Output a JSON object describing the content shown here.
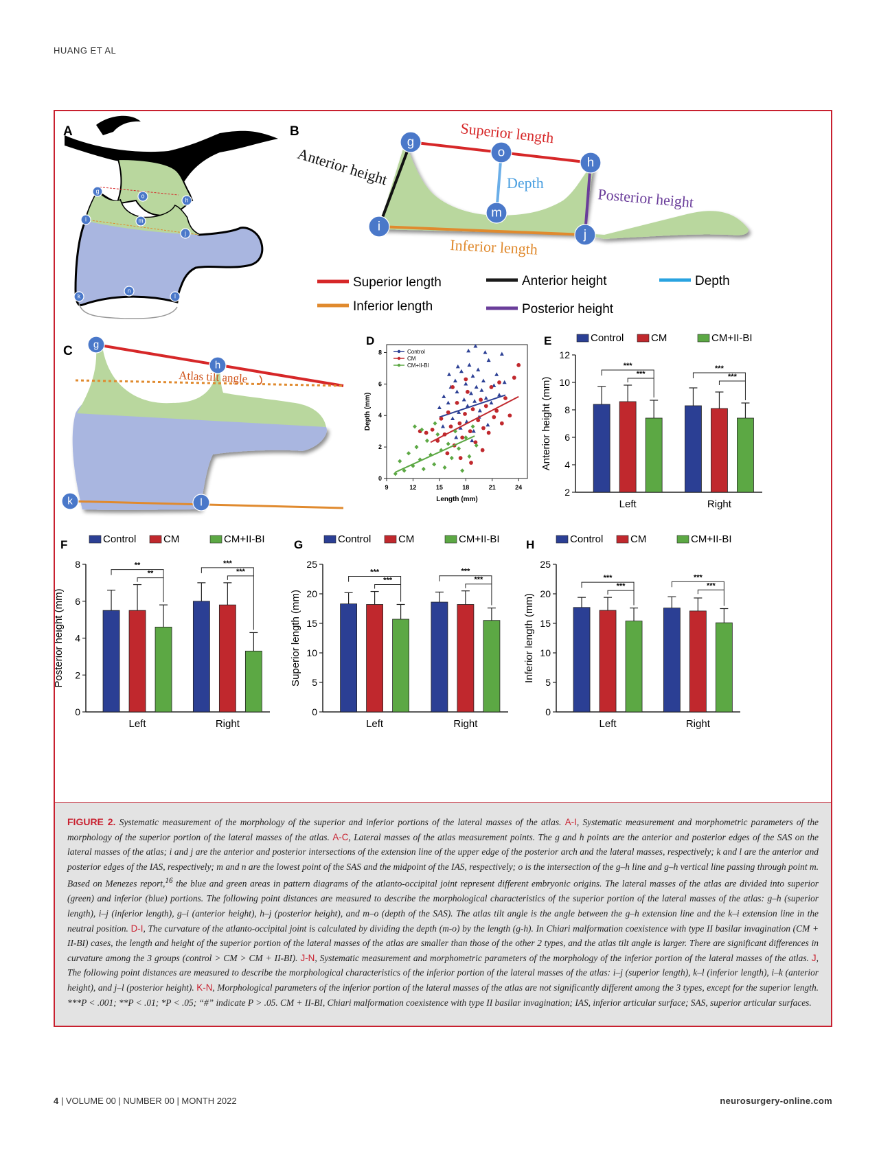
{
  "header": {
    "running_head": "HUANG ET AL"
  },
  "panels": {
    "A": {
      "letter": "A",
      "points": [
        "g",
        "o",
        "h",
        "i",
        "m",
        "j",
        "k",
        "n",
        "l"
      ]
    },
    "B": {
      "letter": "B",
      "points": [
        "g",
        "o",
        "h",
        "m",
        "i",
        "j"
      ],
      "labels": {
        "superior_length": "Superior length",
        "anterior_height": "Anterior height",
        "depth": "Depth",
        "posterior_height": "Posterior height",
        "inferior_length": "Inferior length"
      },
      "legend": [
        {
          "label": "Superior length",
          "color": "#d62728"
        },
        {
          "label": "Anterior height",
          "color": "#1a1a1a"
        },
        {
          "label": "Depth",
          "color": "#29a3e0"
        },
        {
          "label": "Inferior length",
          "color": "#e08a2e"
        },
        {
          "label": "Posterior height",
          "color": "#6a3d9a"
        }
      ]
    },
    "C": {
      "letter": "C",
      "points": [
        "g",
        "h",
        "k",
        "l"
      ],
      "angle_label": "Atlas tilt angle"
    }
  },
  "colors": {
    "control": "#2b3f94",
    "cm": "#c0282d",
    "cm_iibi": "#5ca844",
    "accent": "#c8202f",
    "green_region": "#b9d79e",
    "blue_region": "#a9b6e0",
    "point_fill": "#4a78c9"
  },
  "chart_data": [
    {
      "panel": "D",
      "type": "scatter",
      "xlabel": "Length (mm)",
      "ylabel": "Depth (mm)",
      "xlim": [
        9,
        25
      ],
      "ylim": [
        0,
        8.5
      ],
      "xticks": [
        "9",
        "12",
        "15",
        "18",
        "21",
        "24"
      ],
      "yticks": [
        "0",
        "2",
        "4",
        "6",
        "8"
      ],
      "legend": [
        "Control",
        "CM",
        "CM+II-BI"
      ],
      "series": [
        {
          "name": "Control",
          "marker": "triangle",
          "trend": [
            [
              15,
              3.9
            ],
            [
              22.5,
              5.3
            ]
          ],
          "points": [
            [
              15,
              4.5
            ],
            [
              15.5,
              5.2
            ],
            [
              16,
              4.8
            ],
            [
              16.3,
              5.8
            ],
            [
              16.8,
              6.2
            ],
            [
              17,
              5.5
            ],
            [
              17.2,
              4.2
            ],
            [
              17.5,
              6.8
            ],
            [
              17.8,
              5.0
            ],
            [
              18,
              6.0
            ],
            [
              18.2,
              4.6
            ],
            [
              18.4,
              7.2
            ],
            [
              18.6,
              5.4
            ],
            [
              18.8,
              6.5
            ],
            [
              19,
              4.9
            ],
            [
              19.2,
              5.8
            ],
            [
              19.4,
              6.9
            ],
            [
              19.6,
              4.3
            ],
            [
              19.8,
              5.6
            ],
            [
              20,
              6.2
            ],
            [
              20.3,
              5.1
            ],
            [
              20.6,
              7.5
            ],
            [
              20.9,
              4.8
            ],
            [
              21.2,
              5.9
            ],
            [
              21.5,
              6.6
            ],
            [
              21.8,
              5.3
            ],
            [
              22.1,
              7.9
            ],
            [
              22.4,
              6.1
            ],
            [
              16.5,
              3.8
            ],
            [
              17.4,
              3.2
            ],
            [
              18.1,
              3.6
            ],
            [
              18.9,
              3.0
            ],
            [
              19.5,
              3.9
            ],
            [
              16.1,
              6.6
            ],
            [
              17.1,
              7.1
            ],
            [
              18.3,
              8.1
            ],
            [
              19.1,
              8.4
            ],
            [
              20.2,
              8.0
            ],
            [
              15.4,
              3.3
            ],
            [
              16.9,
              2.6
            ],
            [
              18.7,
              2.4
            ],
            [
              20.5,
              3.4
            ]
          ]
        },
        {
          "name": "CM",
          "marker": "circle",
          "trend": [
            [
              14,
              2.3
            ],
            [
              24,
              5.2
            ]
          ],
          "points": [
            [
              14.2,
              3.1
            ],
            [
              14.8,
              2.4
            ],
            [
              15.2,
              3.8
            ],
            [
              15.6,
              2.8
            ],
            [
              16,
              4.2
            ],
            [
              16.3,
              3.3
            ],
            [
              16.7,
              2.1
            ],
            [
              17,
              4.8
            ],
            [
              17.3,
              3.5
            ],
            [
              17.6,
              2.6
            ],
            [
              17.9,
              4.1
            ],
            [
              18.2,
              5.5
            ],
            [
              18.5,
              3.0
            ],
            [
              18.8,
              4.4
            ],
            [
              19.1,
              2.3
            ],
            [
              19.4,
              3.7
            ],
            [
              19.7,
              5.0
            ],
            [
              20,
              3.2
            ],
            [
              20.3,
              4.6
            ],
            [
              20.6,
              2.9
            ],
            [
              20.9,
              5.8
            ],
            [
              21.2,
              3.9
            ],
            [
              21.5,
              4.3
            ],
            [
              21.8,
              6.1
            ],
            [
              22.1,
              3.5
            ],
            [
              22.5,
              5.1
            ],
            [
              23,
              4.0
            ],
            [
              23.5,
              6.4
            ],
            [
              24,
              7.2
            ],
            [
              13.5,
              2.9
            ],
            [
              12.8,
              3.0
            ],
            [
              15.9,
              1.6
            ],
            [
              17.4,
              1.3
            ],
            [
              18.6,
              1.0
            ],
            [
              19.9,
              1.8
            ],
            [
              16.5,
              5.8
            ],
            [
              18,
              6.3
            ]
          ]
        },
        {
          "name": "CM+II-BI",
          "marker": "diamond",
          "trend": [
            [
              10,
              0.4
            ],
            [
              19,
              2.7
            ]
          ],
          "points": [
            [
              10,
              0.3
            ],
            [
              10.5,
              1.1
            ],
            [
              11,
              0.5
            ],
            [
              11.5,
              1.6
            ],
            [
              12,
              0.8
            ],
            [
              12.4,
              2.0
            ],
            [
              12.8,
              1.2
            ],
            [
              13.2,
              0.6
            ],
            [
              13.6,
              2.4
            ],
            [
              14,
              1.5
            ],
            [
              14.4,
              0.9
            ],
            [
              14.8,
              2.8
            ],
            [
              15.2,
              1.8
            ],
            [
              15.6,
              0.7
            ],
            [
              16,
              2.2
            ],
            [
              16.4,
              1.3
            ],
            [
              16.8,
              3.0
            ],
            [
              17.2,
              1.9
            ],
            [
              17.6,
              0.5
            ],
            [
              18,
              2.6
            ],
            [
              18.4,
              1.4
            ],
            [
              18.8,
              3.3
            ],
            [
              19.2,
              2.1
            ],
            [
              13,
              3.1
            ],
            [
              14.5,
              3.5
            ],
            [
              12.2,
              3.3
            ]
          ]
        }
      ]
    },
    {
      "panel": "E",
      "type": "bar",
      "ylabel": "Anterior height (mm)",
      "categories": [
        "Left",
        "Right"
      ],
      "ylim": [
        2,
        12
      ],
      "yticks": [
        "2",
        "4",
        "6",
        "8",
        "10",
        "12"
      ],
      "series": [
        {
          "name": "Control",
          "values": [
            8.4,
            8.3
          ],
          "errors": [
            1.3,
            1.3
          ]
        },
        {
          "name": "CM",
          "values": [
            8.6,
            8.1
          ],
          "errors": [
            1.2,
            1.2
          ]
        },
        {
          "name": "CM+II-BI",
          "values": [
            7.4,
            7.4
          ],
          "errors": [
            1.3,
            1.1
          ]
        }
      ],
      "significance": {
        "outer": "***",
        "inner": "***"
      }
    },
    {
      "panel": "F",
      "type": "bar",
      "ylabel": "Posterior height (mm)",
      "categories": [
        "Left",
        "Right"
      ],
      "ylim": [
        0,
        8
      ],
      "yticks": [
        "0",
        "2",
        "4",
        "6",
        "8"
      ],
      "series": [
        {
          "name": "Control",
          "values": [
            5.5,
            6.0
          ],
          "errors": [
            1.1,
            1.0
          ]
        },
        {
          "name": "CM",
          "values": [
            5.5,
            5.8
          ],
          "errors": [
            1.4,
            1.2
          ]
        },
        {
          "name": "CM+II-BI",
          "values": [
            4.6,
            3.3
          ],
          "errors": [
            1.2,
            1.0
          ]
        }
      ],
      "significance_left": {
        "outer": "**",
        "inner": "**"
      },
      "significance_right": {
        "outer": "***",
        "inner": "***"
      }
    },
    {
      "panel": "G",
      "type": "bar",
      "ylabel": "Superior length (mm)",
      "categories": [
        "Left",
        "Right"
      ],
      "ylim": [
        0,
        25
      ],
      "yticks": [
        "0",
        "5",
        "10",
        "15",
        "20",
        "25"
      ],
      "series": [
        {
          "name": "Control",
          "values": [
            18.3,
            18.6
          ],
          "errors": [
            1.9,
            1.7
          ]
        },
        {
          "name": "CM",
          "values": [
            18.2,
            18.2
          ],
          "errors": [
            2.2,
            2.3
          ]
        },
        {
          "name": "CM+II-BI",
          "values": [
            15.7,
            15.5
          ],
          "errors": [
            2.5,
            2.1
          ]
        }
      ],
      "significance": {
        "outer": "***",
        "inner": "***"
      }
    },
    {
      "panel": "H",
      "type": "bar",
      "ylabel": "Inferior length (mm)",
      "categories": [
        "Left",
        "Right"
      ],
      "ylim": [
        0,
        25
      ],
      "yticks": [
        "0",
        "5",
        "10",
        "15",
        "20",
        "25"
      ],
      "series": [
        {
          "name": "Control",
          "values": [
            17.7,
            17.6
          ],
          "errors": [
            1.7,
            1.9
          ]
        },
        {
          "name": "CM",
          "values": [
            17.2,
            17.1
          ],
          "errors": [
            2.2,
            2.2
          ]
        },
        {
          "name": "CM+II-BI",
          "values": [
            15.4,
            15.1
          ],
          "errors": [
            2.2,
            2.4
          ]
        }
      ],
      "significance": {
        "outer": "***",
        "inner": "***"
      }
    }
  ],
  "legend_labels": [
    "Control",
    "CM",
    "CM+II-BI"
  ],
  "caption": {
    "figure_label": "FIGURE 2.",
    "title": "Systematic measurement of the morphology of the superior and inferior portions of the lateral masses of the atlas.",
    "ref_ai": "A-I",
    "text_ai": "Systematic measurement and morphometric parameters of the morphology of the superior portion of the lateral masses of the atlas.",
    "ref_ac": "A-C",
    "text_ac": "Lateral masses of the atlas measurement points. The g and h points are the anterior and posterior edges of the SAS on the lateral masses of the atlas; i and j are the anterior and posterior intersections of the extension line of the upper edge of the posterior arch and the lateral masses, respectively; k and l are the anterior and posterior edges of the IAS, respectively; m and n are the lowest point of the SAS and the midpoint of the IAS, respectively; o is the intersection of the g–h line and g–h vertical line passing through point m. Based on Menezes report,",
    "sup": "16",
    "text_ac2": "the blue and green areas in pattern diagrams of the atlanto-occipital joint represent different embryonic origins. The lateral masses of the atlas are divided into superior (green) and inferior (blue) portions. The following point distances are measured to describe the morphological characteristics of the superior portion of the lateral masses of the atlas: g–h (superior length), i–j (inferior length), g–i (anterior height), h–j (posterior height), and m–o (depth of the SAS). The atlas tilt angle is the angle between the g–h extension line and the k–i extension line in the neutral position.",
    "ref_di": "D-I",
    "text_di": "The curvature of the atlanto-occipital joint is calculated by dividing the depth (m-o) by the length (g-h). In Chiari malformation coexistence with type II basilar invagination (CM + II-BI) cases, the length and height of the superior portion of the lateral masses of the atlas are smaller than those of the other 2 types, and the atlas tilt angle is larger. There are significant differences in curvature among the 3 groups (control > CM > CM + II-BI).",
    "ref_jn": "J-N",
    "text_jn": "Systematic measurement and morphometric parameters of the morphology of the inferior portion of the lateral masses of the atlas.",
    "ref_j": "J",
    "text_j": "The following point distances are measured to describe the morphological characteristics of the inferior portion of the lateral masses of the atlas: i–j (superior length), k–l (inferior length), i–k (anterior height), and j–l (posterior height).",
    "ref_kn": "K-N",
    "text_kn": "Morphological parameters of the inferior portion of the lateral masses of the atlas are not significantly different among the 3 types, except for the superior length. ***P < .001; **P < .01; *P < .05; “#” indicate P > .05. CM + II-BI, Chiari malformation coexistence with type II basilar invagination; IAS, inferior articular surface; SAS, superior articular surfaces."
  },
  "footer": {
    "page_number": "4",
    "issue": "| VOLUME 00 | NUMBER 00 | MONTH 2022",
    "website": "neurosurgery-online.com"
  }
}
